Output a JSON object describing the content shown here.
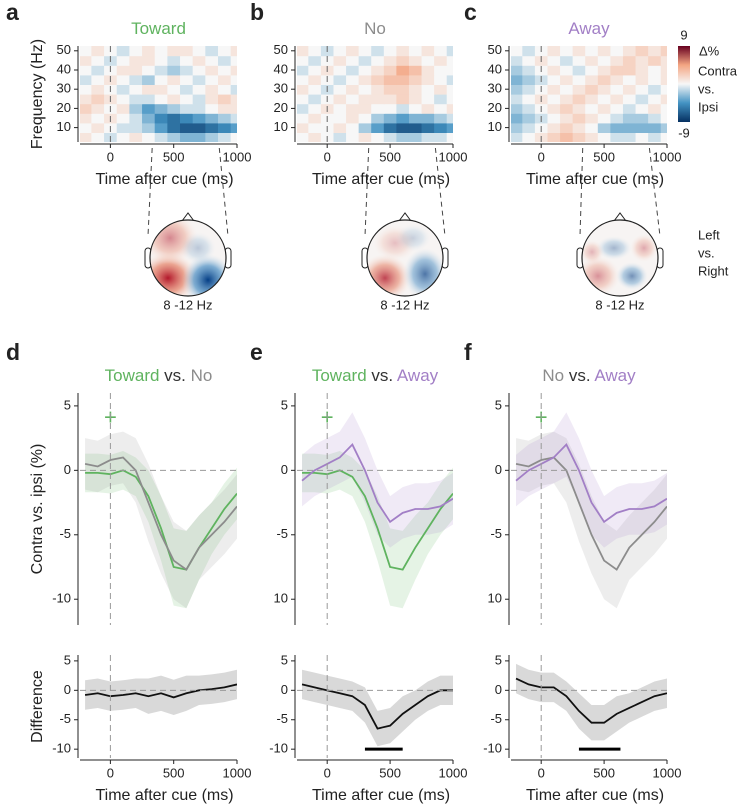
{
  "chart_data": [
    {
      "type": "heatmap",
      "panel": "a",
      "title": [
        {
          "text": "Toward",
          "color": "#5fb35f"
        }
      ],
      "xlabel": "Time after cue (ms)",
      "ylabel": "Frequency (Hz)",
      "x": [
        -200,
        -100,
        0,
        100,
        200,
        300,
        400,
        500,
        600,
        700,
        800,
        900,
        1000
      ],
      "y": [
        5,
        10,
        15,
        20,
        25,
        30,
        35,
        40,
        45,
        50
      ],
      "z": [
        [
          1,
          0,
          -1,
          0,
          1,
          0,
          -1,
          -2,
          -3,
          -3,
          -2,
          -1,
          0
        ],
        [
          0,
          1,
          0,
          -1,
          -1,
          -2,
          -4,
          -6,
          -7,
          -7,
          -6,
          -5,
          -4
        ],
        [
          1,
          0,
          1,
          0,
          -1,
          -3,
          -5,
          -6,
          -5,
          -4,
          -3,
          -2,
          -1
        ],
        [
          2,
          1,
          0,
          1,
          -2,
          -4,
          -3,
          -2,
          -1,
          -1,
          0,
          1,
          1
        ],
        [
          1,
          2,
          1,
          0,
          -1,
          -1,
          0,
          1,
          0,
          -1,
          1,
          2,
          1
        ],
        [
          0,
          1,
          0,
          -1,
          0,
          1,
          1,
          0,
          -1,
          0,
          1,
          0,
          -1
        ],
        [
          -1,
          0,
          1,
          0,
          -1,
          -2,
          0,
          1,
          0,
          -1,
          0,
          1,
          0
        ],
        [
          0,
          -1,
          0,
          1,
          1,
          0,
          -1,
          -2,
          -1,
          0,
          1,
          0,
          1
        ],
        [
          1,
          0,
          -1,
          0,
          1,
          1,
          0,
          -1,
          0,
          1,
          0,
          -1,
          0
        ],
        [
          0,
          1,
          0,
          -1,
          0,
          1,
          0,
          1,
          1,
          0,
          -1,
          0,
          1
        ]
      ],
      "xlim": [
        -240,
        1000
      ],
      "ylim": [
        2.5,
        52.5
      ],
      "xticks": [
        0,
        500,
        1000
      ],
      "yticks": [
        10,
        20,
        30,
        40,
        50
      ],
      "vline": 0
    },
    {
      "type": "heatmap",
      "panel": "b",
      "title": [
        {
          "text": "No",
          "color": "#8c8c8c"
        }
      ],
      "xlabel": "Time after cue (ms)",
      "x": [
        -200,
        -100,
        0,
        100,
        200,
        300,
        400,
        500,
        600,
        700,
        800,
        900,
        1000
      ],
      "y": [
        5,
        10,
        15,
        20,
        25,
        30,
        35,
        40,
        45,
        50
      ],
      "z": [
        [
          0,
          1,
          0,
          -1,
          0,
          1,
          0,
          -1,
          -2,
          -2,
          -1,
          -1,
          0
        ],
        [
          1,
          0,
          0,
          1,
          0,
          -2,
          -4,
          -6,
          -7,
          -7,
          -6,
          -5,
          -4
        ],
        [
          0,
          1,
          0,
          0,
          1,
          0,
          -2,
          -3,
          -4,
          -3,
          -3,
          -2,
          -1
        ],
        [
          -1,
          0,
          1,
          0,
          1,
          1,
          0,
          0,
          -1,
          0,
          1,
          0,
          1
        ],
        [
          0,
          -1,
          0,
          1,
          0,
          1,
          1,
          1,
          2,
          1,
          0,
          -1,
          0
        ],
        [
          1,
          0,
          -1,
          0,
          1,
          0,
          1,
          2,
          2,
          1,
          0,
          1,
          0
        ],
        [
          0,
          1,
          0,
          -1,
          0,
          1,
          2,
          3,
          3,
          2,
          1,
          0,
          -1
        ],
        [
          -1,
          0,
          1,
          0,
          -1,
          0,
          1,
          2,
          4,
          3,
          1,
          0,
          0
        ],
        [
          0,
          -1,
          0,
          1,
          0,
          -1,
          0,
          1,
          2,
          1,
          0,
          1,
          0
        ],
        [
          1,
          0,
          -1,
          0,
          1,
          0,
          -1,
          0,
          1,
          0,
          1,
          0,
          -1
        ]
      ],
      "xlim": [
        -240,
        1000
      ],
      "ylim": [
        2.5,
        52.5
      ],
      "xticks": [
        0,
        500,
        1000
      ],
      "yticks": [
        10,
        20,
        30,
        40,
        50
      ],
      "vline": 0
    },
    {
      "type": "heatmap",
      "panel": "c",
      "title": [
        {
          "text": "Away",
          "color": "#a27fc6"
        }
      ],
      "xlabel": "Time after cue (ms)",
      "x": [
        -200,
        -100,
        0,
        100,
        200,
        300,
        400,
        500,
        600,
        700,
        800,
        900,
        1000
      ],
      "y": [
        5,
        10,
        15,
        20,
        25,
        30,
        35,
        40,
        45,
        50
      ],
      "z": [
        [
          -1,
          0,
          1,
          2,
          3,
          2,
          1,
          0,
          -1,
          -1,
          0,
          -1,
          0
        ],
        [
          -2,
          -1,
          0,
          1,
          2,
          1,
          0,
          -2,
          -3,
          -3,
          -3,
          -3,
          -2
        ],
        [
          -3,
          -2,
          -1,
          0,
          1,
          2,
          1,
          0,
          -1,
          -2,
          -2,
          -1,
          0
        ],
        [
          -2,
          -1,
          0,
          1,
          2,
          1,
          0,
          1,
          0,
          -1,
          0,
          1,
          0
        ],
        [
          -1,
          0,
          1,
          0,
          1,
          2,
          1,
          0,
          1,
          0,
          -1,
          0,
          1
        ],
        [
          -2,
          -1,
          0,
          1,
          0,
          1,
          2,
          1,
          0,
          1,
          0,
          -1,
          0
        ],
        [
          -3,
          -2,
          -1,
          0,
          1,
          0,
          1,
          2,
          1,
          0,
          1,
          0,
          1
        ],
        [
          -2,
          -1,
          0,
          1,
          0,
          -1,
          0,
          1,
          2,
          2,
          1,
          0,
          1
        ],
        [
          -1,
          0,
          1,
          0,
          -1,
          0,
          1,
          0,
          1,
          2,
          1,
          2,
          1
        ],
        [
          0,
          -1,
          0,
          1,
          0,
          1,
          0,
          1,
          0,
          1,
          2,
          1,
          2
        ]
      ],
      "xlim": [
        -240,
        1000
      ],
      "ylim": [
        2.5,
        52.5
      ],
      "xticks": [
        0,
        500,
        1000
      ],
      "yticks": [
        10,
        20,
        30,
        40,
        50
      ],
      "vline": 0
    },
    {
      "type": "line",
      "panel": "d",
      "title": [
        {
          "text": "Toward",
          "color": "#5fb35f"
        },
        {
          "text": " vs. ",
          "color": "#333333"
        },
        {
          "text": "No",
          "color": "#8c8c8c"
        }
      ],
      "ylabel": "Contra vs. ipsi (%)",
      "x": [
        -200,
        -100,
        0,
        100,
        200,
        300,
        400,
        500,
        600,
        700,
        800,
        900,
        1000
      ],
      "series": [
        {
          "name": "Toward",
          "color": "#5fb35f",
          "values": [
            -0.2,
            -0.2,
            -0.3,
            0,
            -0.5,
            -2,
            -4.5,
            -7.5,
            -7.7,
            -6,
            -4.5,
            -3,
            -1.8
          ],
          "errors": [
            1.5,
            1.5,
            1.5,
            1.5,
            1.5,
            2,
            2.5,
            3,
            3,
            2.5,
            2,
            2,
            2
          ]
        },
        {
          "name": "No",
          "color": "#8c8c8c",
          "values": [
            0.5,
            0.3,
            0.8,
            1,
            0,
            -2.5,
            -5,
            -7,
            -7.7,
            -6,
            -5,
            -4,
            -2.8
          ],
          "errors": [
            2,
            2,
            2,
            2,
            2.5,
            3,
            3,
            3,
            3,
            2.5,
            2.5,
            2.5,
            2.5
          ]
        }
      ],
      "xlim": [
        -240,
        1000
      ],
      "ylim": [
        -12,
        6
      ],
      "yticks": [
        5,
        0,
        -5,
        -10
      ],
      "vline": 0,
      "hline": 0,
      "annotation": {
        "text": "+",
        "x": 0,
        "y": 4,
        "color": "#5fb35f"
      }
    },
    {
      "type": "line",
      "panel": "e",
      "title": [
        {
          "text": "Toward",
          "color": "#5fb35f"
        },
        {
          "text": " vs. ",
          "color": "#333333"
        },
        {
          "text": "Away",
          "color": "#a27fc6"
        }
      ],
      "x": [
        -200,
        -100,
        0,
        100,
        200,
        300,
        400,
        500,
        600,
        700,
        800,
        900,
        1000
      ],
      "series": [
        {
          "name": "Toward",
          "color": "#5fb35f",
          "values": [
            -0.2,
            -0.2,
            -0.3,
            0,
            -0.5,
            -2,
            -4.5,
            -7.5,
            -7.7,
            -6,
            -4.5,
            -3,
            -1.8
          ],
          "errors": [
            1.5,
            1.5,
            1.5,
            1.5,
            1.5,
            2,
            2.5,
            3,
            3,
            2.5,
            2,
            2,
            2
          ]
        },
        {
          "name": "Away",
          "color": "#a27fc6",
          "values": [
            -0.8,
            0,
            0.5,
            1,
            2,
            0,
            -2.5,
            -4,
            -3.3,
            -3,
            -3,
            -2.8,
            -2.2
          ],
          "errors": [
            2,
            2,
            2,
            2,
            2.5,
            2.5,
            2.5,
            2,
            2,
            2,
            2,
            2,
            2
          ]
        }
      ],
      "xlim": [
        -240,
        1000
      ],
      "ylim": [
        -12,
        6
      ],
      "yticks": [
        5,
        0,
        -5,
        {
          "value": -10,
          "label": "10"
        }
      ],
      "vline": 0,
      "hline": 0,
      "annotation": {
        "text": "+",
        "x": 0,
        "y": 4,
        "color": "#5fb35f"
      }
    },
    {
      "type": "line",
      "panel": "f",
      "title": [
        {
          "text": "No",
          "color": "#8c8c8c"
        },
        {
          "text": " vs. ",
          "color": "#333333"
        },
        {
          "text": "Away",
          "color": "#a27fc6"
        }
      ],
      "x": [
        -200,
        -100,
        0,
        100,
        200,
        300,
        400,
        500,
        600,
        700,
        800,
        900,
        1000
      ],
      "series": [
        {
          "name": "No",
          "color": "#8c8c8c",
          "values": [
            0.5,
            0.3,
            0.8,
            1,
            0,
            -2.5,
            -5,
            -7,
            -7.7,
            -6,
            -5,
            -4,
            -2.8
          ],
          "errors": [
            2,
            2,
            2,
            2,
            2.5,
            3,
            3,
            3,
            3,
            2.5,
            2.5,
            2.5,
            2.5
          ]
        },
        {
          "name": "Away",
          "color": "#a27fc6",
          "values": [
            -0.8,
            0,
            0.5,
            1,
            2,
            0,
            -2.5,
            -4,
            -3.3,
            -3,
            -3,
            -2.8,
            -2.2
          ],
          "errors": [
            2,
            2,
            2,
            2,
            2.5,
            2.5,
            2.5,
            2,
            2,
            2,
            2,
            2,
            2
          ]
        }
      ],
      "xlim": [
        -240,
        1000
      ],
      "ylim": [
        -12,
        6
      ],
      "yticks": [
        5,
        0,
        -5,
        {
          "value": -10,
          "label": "10"
        }
      ],
      "vline": 0,
      "hline": 0,
      "annotation": {
        "text": "+",
        "x": 0,
        "y": 4,
        "color": "#5fb35f"
      }
    },
    {
      "type": "line",
      "xlabel": "Time after cue (ms)",
      "ylabel": "Difference",
      "x": [
        -200,
        -100,
        0,
        100,
        200,
        300,
        400,
        500,
        600,
        700,
        800,
        900,
        1000
      ],
      "series": [
        {
          "color": "#111111",
          "values": [
            -0.8,
            -0.5,
            -1,
            -0.8,
            -0.5,
            -1,
            -0.5,
            -1.2,
            -0.5,
            0,
            0.2,
            0.5,
            1
          ],
          "errors": [
            2.5,
            2.5,
            2.5,
            2.5,
            2.5,
            3,
            3,
            3,
            3,
            2.5,
            2.5,
            2.5,
            2.5
          ]
        }
      ],
      "xlim": [
        -240,
        1000
      ],
      "ylim": [
        -11.5,
        6
      ],
      "xticks": [
        0,
        500,
        1000
      ],
      "yticks": [
        5,
        0,
        -5,
        -10
      ],
      "vline": 0,
      "hline": 0
    },
    {
      "type": "line",
      "xlabel": "Time after cue (ms)",
      "x": [
        -200,
        -100,
        0,
        100,
        200,
        300,
        400,
        500,
        600,
        700,
        800,
        900,
        1000
      ],
      "series": [
        {
          "color": "#111111",
          "values": [
            1,
            0.5,
            0,
            -0.5,
            -1,
            -2.5,
            -6.5,
            -6,
            -4,
            -2.5,
            -1,
            0,
            0
          ],
          "errors": [
            2.5,
            2.5,
            2.5,
            2.5,
            2.5,
            3,
            3,
            3,
            3,
            2.5,
            2.5,
            2.5,
            2.5
          ]
        }
      ],
      "xlim": [
        -240,
        1000
      ],
      "ylim": [
        -11.5,
        6
      ],
      "xticks": [
        0,
        500,
        1000
      ],
      "yticks": [
        5,
        0,
        -5,
        -10
      ],
      "vline": 0,
      "hline": 0,
      "sig": {
        "x": [
          300,
          600
        ],
        "y": -10
      }
    },
    {
      "type": "line",
      "xlabel": "Time after cue (ms)",
      "x": [
        -200,
        -100,
        0,
        100,
        200,
        300,
        400,
        500,
        600,
        700,
        800,
        900,
        1000
      ],
      "series": [
        {
          "color": "#111111",
          "values": [
            2,
            1,
            0.5,
            0.5,
            -1,
            -3.5,
            -5.5,
            -5.5,
            -4,
            -3,
            -2,
            -1,
            -0.5
          ],
          "errors": [
            2.5,
            2.5,
            2.5,
            2.5,
            2.5,
            3,
            3,
            3,
            3,
            2.5,
            2.5,
            2.5,
            2.5
          ]
        }
      ],
      "xlim": [
        -240,
        1000
      ],
      "ylim": [
        -11.5,
        6
      ],
      "xticks": [
        0,
        500,
        1000
      ],
      "yticks": [
        5,
        0,
        -5,
        -10
      ],
      "vline": 0,
      "hline": 0,
      "sig": {
        "x": [
          300,
          630
        ],
        "y": -10
      }
    }
  ],
  "colorbar": {
    "label": "Δ%",
    "lines": [
      "Contra",
      "vs.",
      "Ipsi"
    ],
    "zlim": [
      -9,
      9
    ],
    "ticks": [
      9,
      -9
    ]
  },
  "topomaps": [
    {
      "label": "8 -12 Hz"
    },
    {
      "label": "8 -12 Hz"
    },
    {
      "label": "8 -12 Hz"
    }
  ],
  "topomap_legend": [
    "Left",
    "vs.",
    "Right"
  ]
}
